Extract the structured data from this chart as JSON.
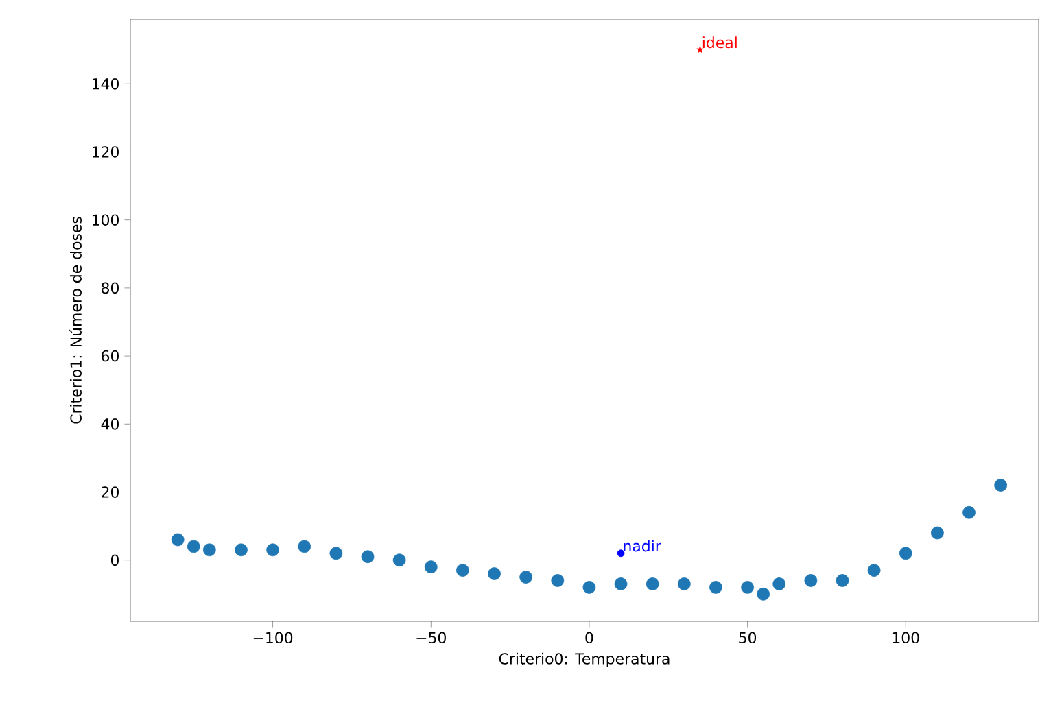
{
  "chart_data": {
    "type": "scatter",
    "xlabel": "Criterio0: Temperatura",
    "ylabel": "Criterio1: Número de doses",
    "xlim": [
      -145,
      142
    ],
    "ylim": [
      -18,
      159
    ],
    "xticks": [
      {
        "value": -100,
        "label": "−100"
      },
      {
        "value": -50,
        "label": "−50"
      },
      0,
      50,
      100
    ],
    "yticks": [
      0,
      20,
      40,
      60,
      80,
      100,
      120,
      140
    ],
    "grid": false,
    "series": [
      {
        "color": "#1f77b4",
        "marker": "circle",
        "x": [
          -130,
          -125,
          -120,
          -110,
          -100,
          -90,
          -80,
          -70,
          -60,
          -50,
          -40,
          -30,
          -20,
          -10,
          0,
          10,
          20,
          30,
          40,
          50,
          55,
          60,
          70,
          80,
          90,
          100,
          110,
          120,
          130
        ],
        "values": [
          6,
          4,
          3,
          3,
          3,
          4,
          2,
          1,
          0,
          -2,
          -3,
          -4,
          -5,
          -6,
          -8,
          -7,
          -7,
          -7,
          -8,
          -8,
          -10,
          -7,
          -6,
          -6,
          -3,
          2,
          8,
          14,
          22
        ]
      },
      {
        "color": "#ff0000",
        "marker": "star",
        "x": [
          35
        ],
        "values": [
          150
        ]
      },
      {
        "color": "#0000ff",
        "marker": "circle",
        "x": [
          10
        ],
        "values": [
          2
        ]
      }
    ],
    "annotations": [
      {
        "text": "ideal",
        "x": 35,
        "y": 150
      },
      {
        "text": "nadir",
        "x": 10,
        "y": 2
      }
    ]
  }
}
